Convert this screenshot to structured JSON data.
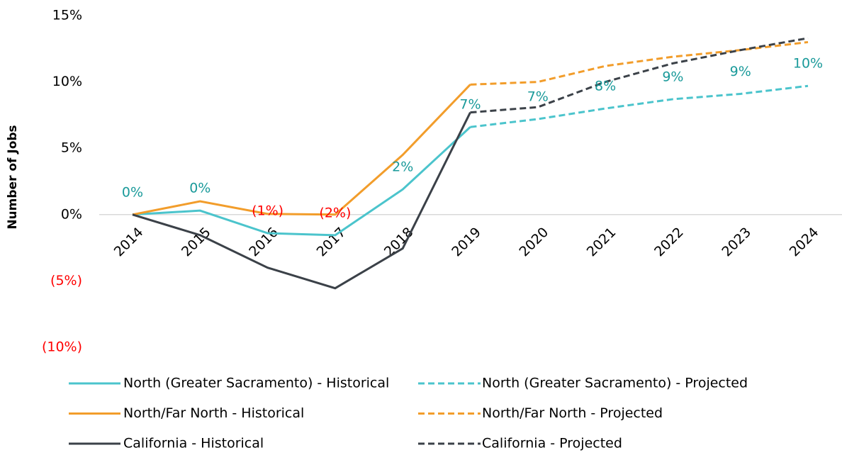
{
  "chart_data": {
    "type": "line",
    "y_label": "Number of Jobs",
    "categories": [
      "2014",
      "2015",
      "2016",
      "2017",
      "2018",
      "2019",
      "2020",
      "2021",
      "2022",
      "2023",
      "2024"
    ],
    "ylim": [
      -10,
      15
    ],
    "yticks": [
      {
        "value": 15,
        "label": "15%"
      },
      {
        "value": 10,
        "label": "10%"
      },
      {
        "value": 5,
        "label": "5%"
      },
      {
        "value": 0,
        "label": "0%"
      },
      {
        "value": -5,
        "label": "(5%)"
      },
      {
        "value": -10,
        "label": "(10%)"
      }
    ],
    "label_color": "#1a9a9a",
    "negative_color": "#ff0000",
    "series": [
      {
        "name": "North (Greater Sacramento) - Historical",
        "color": "#4bc4cc",
        "dashed": false,
        "values": [
          0,
          0.3,
          -1.4,
          -1.55,
          1.9,
          6.6,
          null,
          null,
          null,
          null,
          null
        ],
        "value_labels": [
          "0%",
          "0%",
          "(1%)",
          "(2%)",
          "2%",
          "7%",
          null,
          null,
          null,
          null,
          null
        ]
      },
      {
        "name": "North (Greater Sacramento) - Projected",
        "color": "#4bc4cc",
        "dashed": true,
        "values": [
          null,
          null,
          null,
          null,
          null,
          6.6,
          7.2,
          8.0,
          8.7,
          9.1,
          9.7
        ],
        "value_labels": [
          null,
          null,
          null,
          null,
          null,
          null,
          "7%",
          "8%",
          "9%",
          "9%",
          "10%"
        ]
      },
      {
        "name": "North/Far North - Historical",
        "color": "#f29d2b",
        "dashed": false,
        "values": [
          0,
          1.0,
          0.05,
          0,
          4.5,
          9.8,
          null,
          null,
          null,
          null,
          null
        ]
      },
      {
        "name": "North/Far North - Projected",
        "color": "#f29d2b",
        "dashed": true,
        "values": [
          null,
          null,
          null,
          null,
          null,
          9.8,
          10.0,
          11.2,
          11.9,
          12.4,
          13.0
        ]
      },
      {
        "name": "California - Historical",
        "color": "#3b4148",
        "dashed": false,
        "values": [
          0,
          -1.55,
          -4.0,
          -5.55,
          -2.55,
          7.7,
          null,
          null,
          null,
          null,
          null
        ]
      },
      {
        "name": "California - Projected",
        "color": "#3b4148",
        "dashed": true,
        "values": [
          null,
          null,
          null,
          null,
          null,
          7.7,
          8.1,
          10.0,
          11.4,
          12.4,
          13.3
        ]
      }
    ]
  }
}
